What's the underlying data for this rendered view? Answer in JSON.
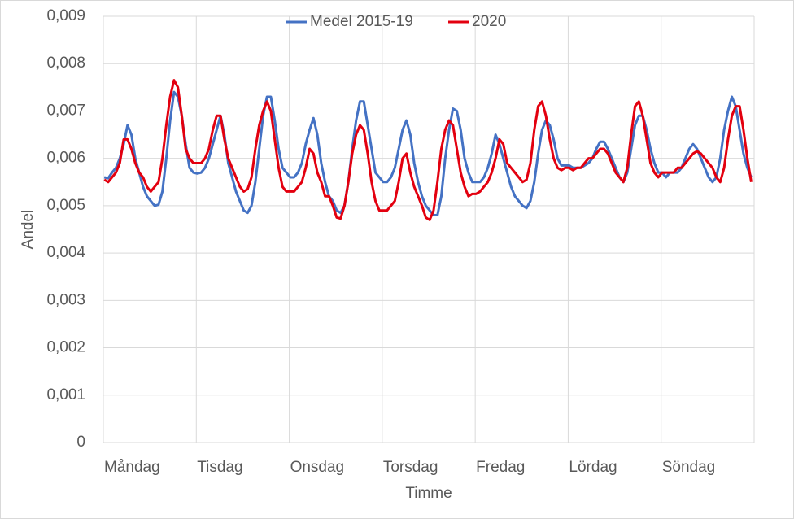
{
  "chart_data": {
    "type": "line",
    "x_label": "Timme",
    "y_label": "Andel",
    "categories": [
      "Måndag",
      null,
      null,
      null,
      null,
      null,
      null,
      null,
      null,
      null,
      null,
      null,
      null,
      null,
      null,
      null,
      null,
      null,
      null,
      null,
      null,
      null,
      null,
      null,
      "Tisdag",
      null,
      null,
      null,
      null,
      null,
      null,
      null,
      null,
      null,
      null,
      null,
      null,
      null,
      null,
      null,
      null,
      null,
      null,
      null,
      null,
      null,
      null,
      null,
      "Onsdag",
      null,
      null,
      null,
      null,
      null,
      null,
      null,
      null,
      null,
      null,
      null,
      null,
      null,
      null,
      null,
      null,
      null,
      null,
      null,
      null,
      null,
      null,
      null,
      "Torsdag",
      null,
      null,
      null,
      null,
      null,
      null,
      null,
      null,
      null,
      null,
      null,
      null,
      null,
      null,
      null,
      null,
      null,
      null,
      null,
      null,
      null,
      null,
      null,
      "Fredag",
      null,
      null,
      null,
      null,
      null,
      null,
      null,
      null,
      null,
      null,
      null,
      null,
      null,
      null,
      null,
      null,
      null,
      null,
      null,
      null,
      null,
      null,
      null,
      "Lördag",
      null,
      null,
      null,
      null,
      null,
      null,
      null,
      null,
      null,
      null,
      null,
      null,
      null,
      null,
      null,
      null,
      null,
      null,
      null,
      null,
      null,
      null,
      null,
      "Söndag",
      null,
      null,
      null,
      null,
      null,
      null,
      null,
      null,
      null,
      null,
      null,
      null,
      null,
      null,
      null,
      null,
      null,
      null,
      null,
      null,
      null,
      null,
      null
    ],
    "series": [
      {
        "name": "Medel 2015-19",
        "color": "#4472c4",
        "values": [
          0.0056,
          0.00558,
          0.0057,
          0.0058,
          0.006,
          0.0063,
          0.0067,
          0.0065,
          0.006,
          0.0057,
          0.0054,
          0.0052,
          0.0051,
          0.005,
          0.00502,
          0.0053,
          0.006,
          0.0068,
          0.0074,
          0.0073,
          0.0069,
          0.0063,
          0.0058,
          0.0057,
          0.00568,
          0.0057,
          0.0058,
          0.006,
          0.0063,
          0.0066,
          0.0069,
          0.0065,
          0.0059,
          0.0056,
          0.0053,
          0.0051,
          0.0049,
          0.00485,
          0.005,
          0.0055,
          0.0062,
          0.0069,
          0.0073,
          0.0073,
          0.0068,
          0.0062,
          0.0058,
          0.0057,
          0.0056,
          0.0056,
          0.0057,
          0.0059,
          0.0063,
          0.0066,
          0.00685,
          0.0065,
          0.0059,
          0.0055,
          0.0052,
          0.0051,
          0.0049,
          0.00485,
          0.005,
          0.0055,
          0.0062,
          0.0068,
          0.0072,
          0.0072,
          0.0067,
          0.0062,
          0.0057,
          0.0056,
          0.0055,
          0.0055,
          0.0056,
          0.0058,
          0.0062,
          0.0066,
          0.0068,
          0.0065,
          0.0059,
          0.0055,
          0.0052,
          0.005,
          0.0049,
          0.0048,
          0.0048,
          0.0052,
          0.006,
          0.0066,
          0.00705,
          0.007,
          0.0066,
          0.006,
          0.0057,
          0.0055,
          0.0055,
          0.0055,
          0.0056,
          0.0058,
          0.0061,
          0.0065,
          0.0063,
          0.006,
          0.0057,
          0.0054,
          0.0052,
          0.0051,
          0.005,
          0.00495,
          0.0051,
          0.0055,
          0.0061,
          0.0066,
          0.0068,
          0.0067,
          0.0064,
          0.006,
          0.00585,
          0.00585,
          0.00585,
          0.0058,
          0.0058,
          0.0058,
          0.00585,
          0.0059,
          0.006,
          0.0062,
          0.00635,
          0.00635,
          0.0062,
          0.006,
          0.0058,
          0.0056,
          0.0055,
          0.0057,
          0.0062,
          0.0067,
          0.0069,
          0.0069,
          0.0066,
          0.0062,
          0.0059,
          0.0057,
          0.0057,
          0.0056,
          0.0057,
          0.0057,
          0.0057,
          0.0058,
          0.006,
          0.0062,
          0.0063,
          0.0062,
          0.006,
          0.0058,
          0.0056,
          0.0055,
          0.0056,
          0.006,
          0.0066,
          0.007,
          0.0073,
          0.0071,
          0.0066,
          0.0061,
          0.0058,
          0.0056
        ]
      },
      {
        "name": "2020",
        "color": "#e3000f",
        "values": [
          0.00555,
          0.0055,
          0.0056,
          0.0057,
          0.0059,
          0.0064,
          0.0064,
          0.0062,
          0.0059,
          0.0057,
          0.0056,
          0.0054,
          0.0053,
          0.0054,
          0.0055,
          0.006,
          0.0067,
          0.0073,
          0.00765,
          0.0075,
          0.0069,
          0.0062,
          0.006,
          0.0059,
          0.0059,
          0.0059,
          0.006,
          0.0062,
          0.0066,
          0.0069,
          0.0069,
          0.0064,
          0.006,
          0.0058,
          0.0056,
          0.0054,
          0.0053,
          0.00535,
          0.0056,
          0.0062,
          0.0067,
          0.007,
          0.0072,
          0.007,
          0.0064,
          0.0058,
          0.0054,
          0.0053,
          0.0053,
          0.0053,
          0.0054,
          0.0055,
          0.0058,
          0.0062,
          0.0061,
          0.0057,
          0.0055,
          0.0052,
          0.0052,
          0.005,
          0.00475,
          0.00473,
          0.005,
          0.0055,
          0.0061,
          0.0065,
          0.0067,
          0.0066,
          0.0061,
          0.0055,
          0.0051,
          0.0049,
          0.0049,
          0.0049,
          0.005,
          0.0051,
          0.0055,
          0.006,
          0.0061,
          0.0057,
          0.0054,
          0.0052,
          0.005,
          0.00475,
          0.0047,
          0.0049,
          0.0055,
          0.0062,
          0.0066,
          0.0068,
          0.0067,
          0.0062,
          0.0057,
          0.0054,
          0.0052,
          0.00525,
          0.00525,
          0.0053,
          0.0054,
          0.0055,
          0.0057,
          0.006,
          0.0064,
          0.0063,
          0.0059,
          0.0058,
          0.0057,
          0.0056,
          0.0055,
          0.00555,
          0.0059,
          0.0066,
          0.0071,
          0.0072,
          0.0069,
          0.0064,
          0.006,
          0.0058,
          0.00575,
          0.0058,
          0.0058,
          0.00575,
          0.0058,
          0.0058,
          0.0059,
          0.006,
          0.006,
          0.0061,
          0.0062,
          0.0062,
          0.0061,
          0.0059,
          0.0057,
          0.0056,
          0.0055,
          0.0058,
          0.0065,
          0.0071,
          0.0072,
          0.0069,
          0.0064,
          0.0059,
          0.0057,
          0.0056,
          0.0057,
          0.0057,
          0.0057,
          0.0057,
          0.0058,
          0.0058,
          0.0059,
          0.006,
          0.0061,
          0.00615,
          0.0061,
          0.006,
          0.0059,
          0.0058,
          0.0056,
          0.0055,
          0.0058,
          0.0064,
          0.0069,
          0.0071,
          0.0071,
          0.0066,
          0.006,
          0.0055
        ]
      }
    ],
    "ylim": [
      0,
      0.009
    ],
    "yticks": [
      0,
      {
        "value": 0.001,
        "label": "0,001"
      },
      {
        "value": 0.002,
        "label": "0,002"
      },
      {
        "value": 0.003,
        "label": "0,003"
      },
      {
        "value": 0.004,
        "label": "0,004"
      },
      {
        "value": 0.005,
        "label": "0,005"
      },
      {
        "value": 0.006,
        "label": "0,006"
      },
      {
        "value": 0.007,
        "label": "0,007"
      },
      {
        "value": 0.008,
        "label": "0,008"
      },
      {
        "value": 0.009,
        "label": "0,009"
      }
    ],
    "grid": true,
    "legend": "top"
  }
}
